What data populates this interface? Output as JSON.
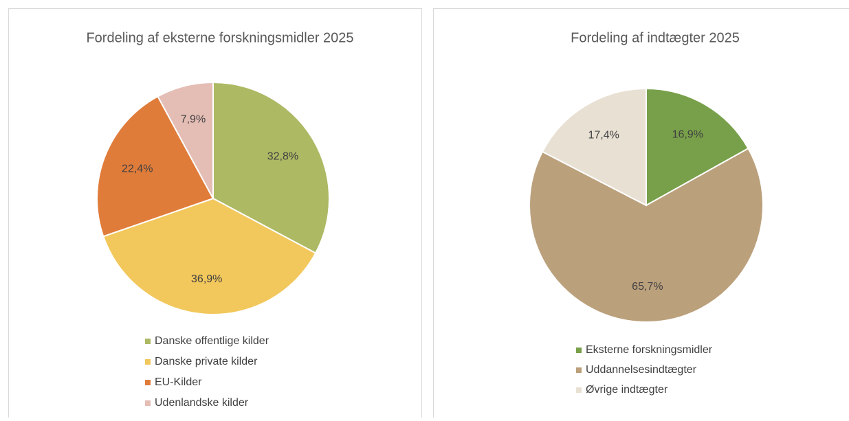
{
  "chart_data": [
    {
      "type": "pie",
      "title": "Fordeling af eksterne forskningsmidler 2025",
      "categories": [
        "Danske offentlige kilder",
        "Danske private kilder",
        "EU-Kilder",
        "Udenlandske kilder"
      ],
      "values": [
        32.8,
        36.9,
        22.4,
        7.9
      ],
      "value_labels": [
        "32,8%",
        "36,9%",
        "22,4%",
        "7,9%"
      ],
      "colors": [
        "#adb963",
        "#f2c75c",
        "#e07c3a",
        "#e4bdb5"
      ],
      "legend": "bottom"
    },
    {
      "type": "pie",
      "title": "Fordeling af indtægter 2025",
      "categories": [
        "Eksterne forskningsmidler",
        "Uddannelsesindtægter",
        "Øvrige indtægter"
      ],
      "values": [
        16.9,
        65.7,
        17.4
      ],
      "value_labels": [
        "16,9%",
        "65,7%",
        "17,4%"
      ],
      "colors": [
        "#78a04a",
        "#bba07c",
        "#e8e0d3"
      ],
      "legend": "bottom"
    }
  ]
}
